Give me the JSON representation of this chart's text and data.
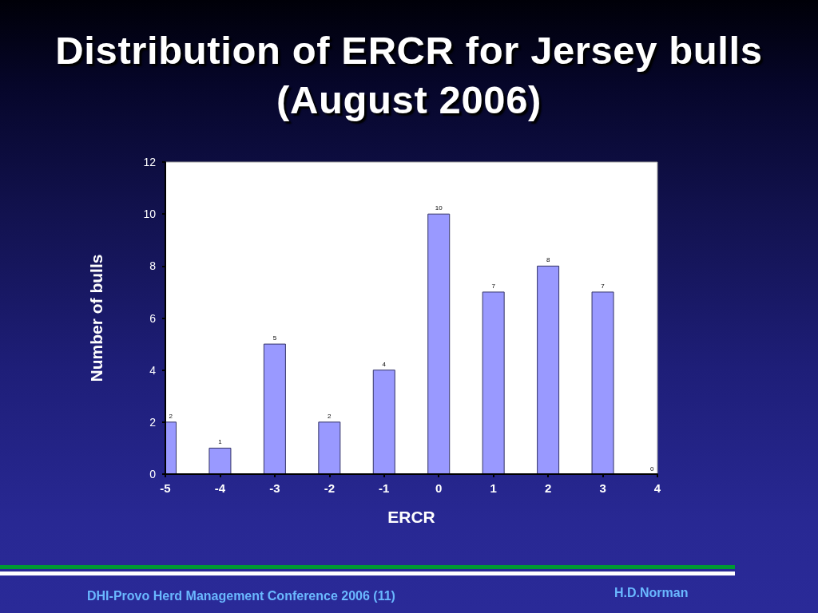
{
  "chart_data": {
    "type": "bar",
    "title": "Distribution of ERCR for Jersey bulls (August 2006)",
    "xlabel": "ERCR",
    "ylabel": "Number of bulls",
    "x": [
      -5,
      -4,
      -3,
      -2,
      -1,
      0,
      1,
      2,
      3,
      4
    ],
    "values": [
      2,
      1,
      5,
      2,
      4,
      10,
      7,
      8,
      7,
      0
    ],
    "color": "#9999ff",
    "xlim": [
      -5,
      4
    ],
    "xticks": [
      -5,
      -4,
      -3,
      -2,
      -1,
      0,
      1,
      2,
      3,
      4
    ],
    "ylim": [
      0,
      12
    ],
    "yticks": [
      0,
      2,
      4,
      6,
      8,
      10,
      12
    ],
    "data_labels": true,
    "annotations": [
      "DHI-Provo Herd Management Conference 2006 (11)",
      "H.D.Norman"
    ]
  }
}
